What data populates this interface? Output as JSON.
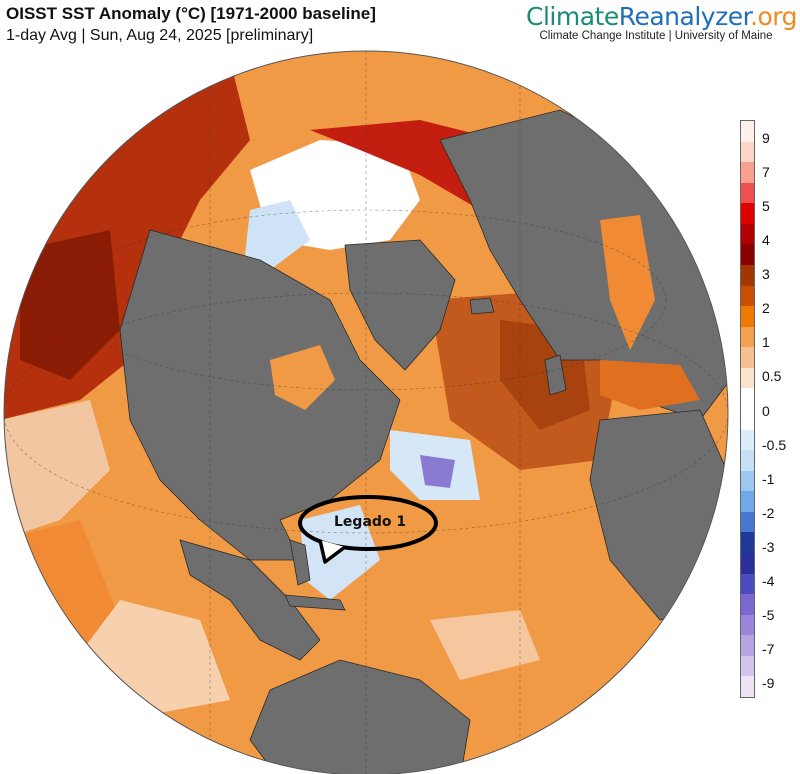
{
  "header": {
    "title": "OISST SST Anomaly (°C) [1971-2000 baseline]",
    "subtitle": "1-day Avg | Sun, Aug 24, 2025 [preliminary]"
  },
  "brand": {
    "logo_part1": "Climate",
    "logo_part2": "Reanalyzer",
    "logo_part3": ".org",
    "affiliation": "Climate Change Institute | University of Maine"
  },
  "map": {
    "projection": "orthographic (North Atlantic centred)",
    "ocean_nodata_color": "#6e6e6e",
    "land_color": "#6e6e6e",
    "annotation_label": "Legado 1"
  },
  "colorbar": {
    "labels": [
      "9",
      "7",
      "5",
      "4",
      "3",
      "2",
      "1",
      "0.5",
      "0",
      "-0.5",
      "-1",
      "-2",
      "-3",
      "-4",
      "-5",
      "-7",
      "-9"
    ],
    "colors": [
      "#fff0ec",
      "#fcd5c8",
      "#f9a08e",
      "#f05050",
      "#e00000",
      "#b00000",
      "#8a0000",
      "#a33600",
      "#c85000",
      "#f07a00",
      "#f4a050",
      "#f7c090",
      "#fce4cc",
      "#ffffff",
      "#ffffff",
      "#dcecf8",
      "#c8e0f5",
      "#9cc8f0",
      "#70a8e8",
      "#4678d2",
      "#1e3a96",
      "#2a2f9a",
      "#4c4ac0",
      "#7a68d0",
      "#9c86dc",
      "#b8a4e2",
      "#d4c4ec",
      "#f0e4f4"
    ]
  }
}
